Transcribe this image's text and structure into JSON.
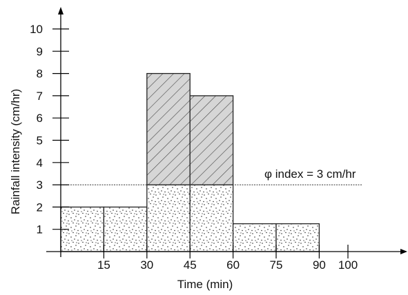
{
  "chart_data": {
    "type": "bar",
    "subtype": "hyetograph",
    "xlabel": "Time (min)",
    "ylabel": "Rainfall intensity (cm/hr)",
    "xlim": [
      0,
      100
    ],
    "ylim": [
      0,
      10
    ],
    "x_ticks": [
      15,
      30,
      45,
      60,
      75,
      90,
      100
    ],
    "y_ticks": [
      1,
      2,
      3,
      4,
      5,
      6,
      7,
      8,
      9,
      10
    ],
    "bins": [
      {
        "start": 0,
        "end": 15,
        "value": 2
      },
      {
        "start": 15,
        "end": 30,
        "value": 2
      },
      {
        "start": 30,
        "end": 45,
        "value": 8
      },
      {
        "start": 45,
        "end": 60,
        "value": 7
      },
      {
        "start": 60,
        "end": 75,
        "value": 1.25
      },
      {
        "start": 75,
        "end": 90,
        "value": 1.25
      }
    ],
    "phi_index": {
      "value": 3,
      "label": "φ index = 3 cm/hr"
    },
    "legend": "none",
    "grid": false,
    "colors": {
      "excess_fill": "#d6d6d6",
      "hatch": "#444444",
      "outline": "#222222",
      "stipple": "#111111"
    }
  }
}
